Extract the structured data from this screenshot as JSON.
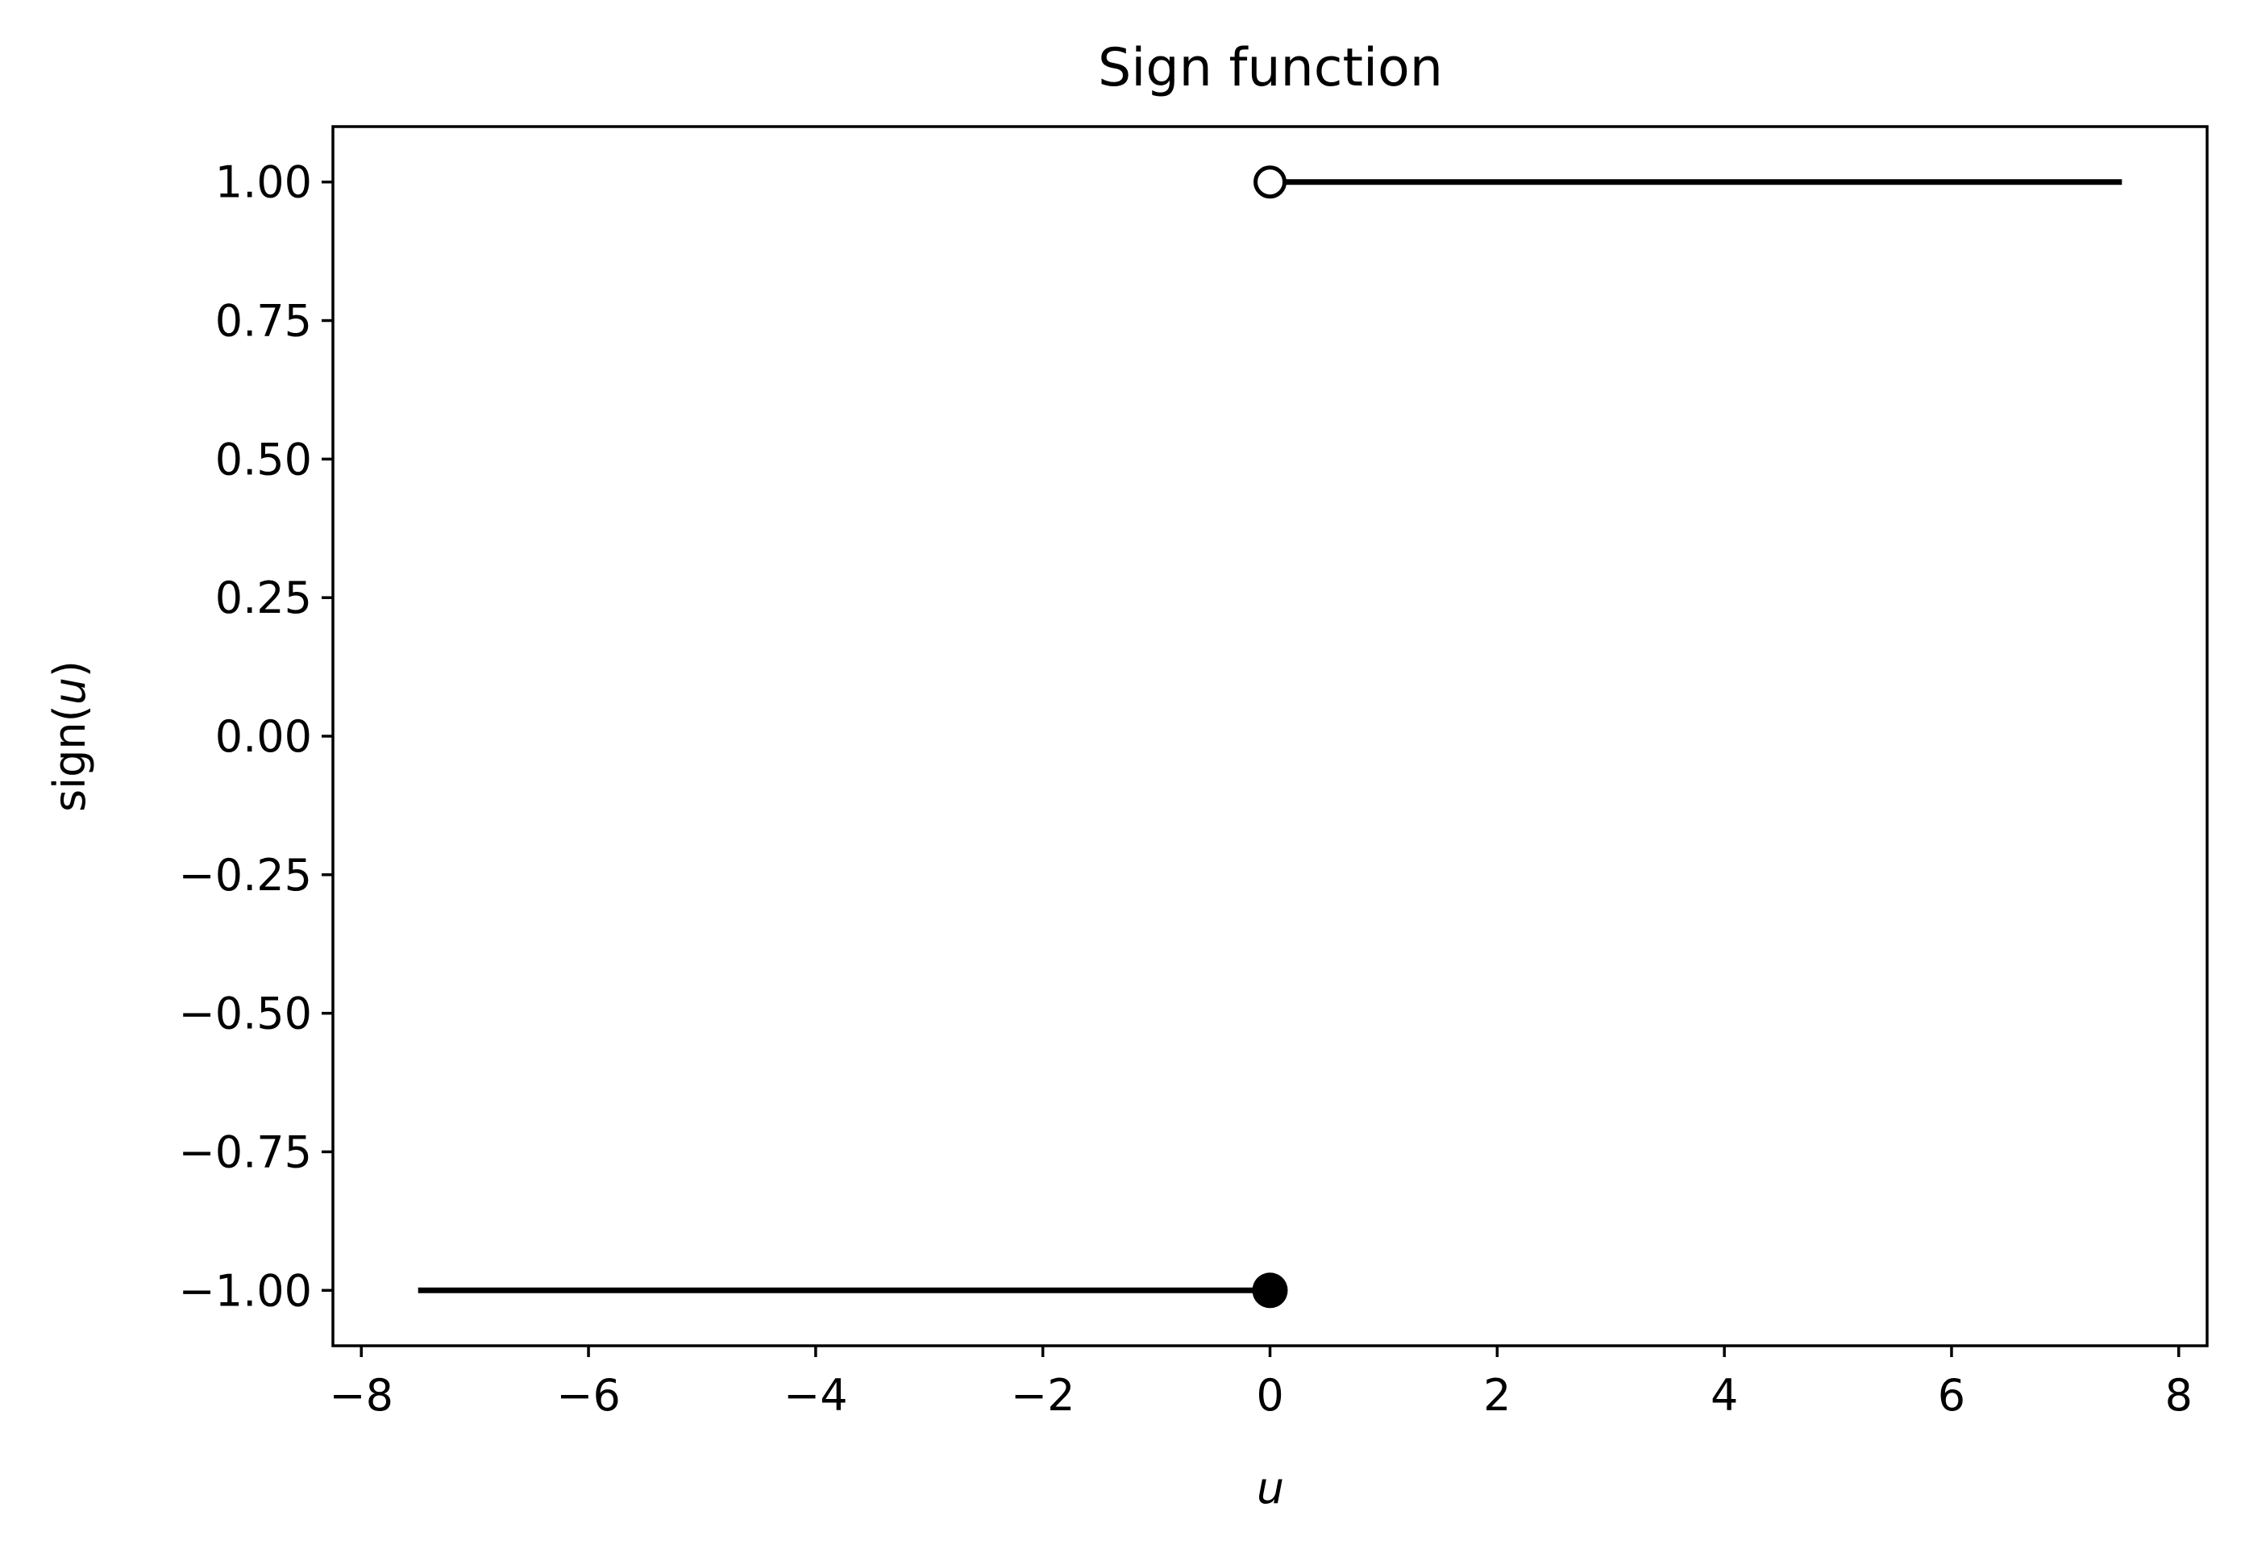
{
  "chart_data": {
    "type": "line",
    "title": "Sign function",
    "xlabel": "u",
    "ylabel": {
      "prefix": "sign(",
      "variable": "u",
      "suffix": ")"
    },
    "xlim": [
      -8.25,
      8.25
    ],
    "ylim": [
      -1.1,
      1.1
    ],
    "x_ticks": [
      -8,
      -6,
      -4,
      -2,
      0,
      2,
      4,
      6,
      8
    ],
    "x_tick_labels": [
      "−8",
      "−6",
      "−4",
      "−2",
      "0",
      "2",
      "4",
      "6",
      "8"
    ],
    "y_ticks": [
      1.0,
      0.75,
      0.5,
      0.25,
      0.0,
      -0.25,
      -0.5,
      -0.75,
      -1.0
    ],
    "y_tick_labels": [
      "1.00",
      "0.75",
      "0.50",
      "0.25",
      "0.00",
      "−0.25",
      "−0.50",
      "−0.75",
      "−1.00"
    ],
    "grid": false,
    "line_color": "#000000",
    "series": [
      {
        "x": [
          -7.5,
          0
        ],
        "y": [
          -1,
          -1
        ]
      },
      {
        "x": [
          0,
          7.5
        ],
        "y": [
          1,
          1
        ]
      }
    ],
    "markers": [
      {
        "x": 0,
        "y": -1,
        "style": "filled"
      },
      {
        "x": 0,
        "y": 1,
        "style": "open"
      }
    ]
  }
}
